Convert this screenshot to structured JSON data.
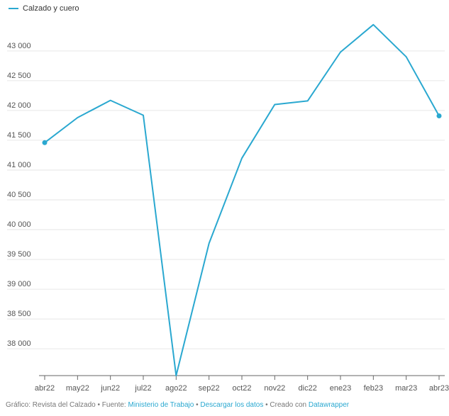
{
  "colors": {
    "series": "#2aa8d0",
    "grid": "#e6e6e6",
    "axis": "#666666"
  },
  "chart_data": {
    "type": "line",
    "title": "",
    "xlabel": "",
    "ylabel": "",
    "categories": [
      "abr22",
      "may22",
      "jun22",
      "jul22",
      "ago22",
      "sep22",
      "oct22",
      "nov22",
      "dic22",
      "ene23",
      "feb23",
      "mar23",
      "abr23"
    ],
    "series": [
      {
        "name": "Calzado y cuero",
        "values": [
          41460,
          41880,
          42170,
          41920,
          37550,
          39770,
          41200,
          42100,
          42160,
          42980,
          43440,
          42900,
          41910
        ]
      }
    ],
    "ylim": [
      37550,
      43450
    ],
    "yticks": [
      38000,
      38500,
      39000,
      39500,
      40000,
      40500,
      41000,
      41500,
      42000,
      42500,
      43000
    ],
    "ytick_labels": [
      "38 000",
      "38 500",
      "39 000",
      "39 500",
      "40 000",
      "40 500",
      "41 000",
      "41 500",
      "42 000",
      "42 500",
      "43 000"
    ],
    "grid": true,
    "legend": "top-left",
    "endpoint_markers": true
  },
  "footer": {
    "prefix": "Gráfico: Revista del Calzado",
    "sep1": " • ",
    "source_label": "Fuente: ",
    "source_link": "Ministerio de Trabajo",
    "sep2": " • ",
    "download_link": "Descargar los datos",
    "sep3": " • ",
    "created_label": "Creado con ",
    "created_link": "Datawrapper"
  }
}
